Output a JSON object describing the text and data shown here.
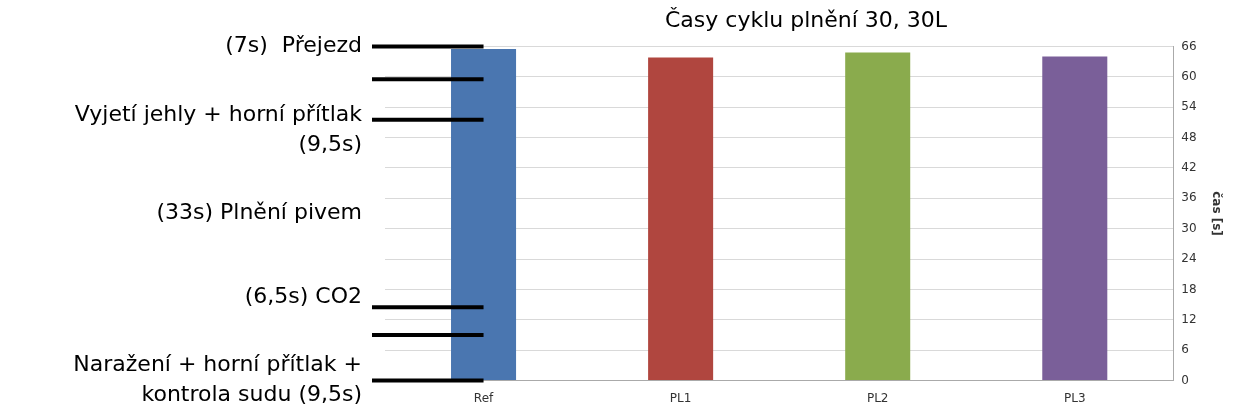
{
  "chart_data": {
    "type": "bar",
    "title": "Časy cyklu plnění 30, 30L",
    "ylabel": "čas [s]",
    "categories": [
      "Ref",
      "PL1",
      "PL2",
      "PL3"
    ],
    "values": [
      65.5,
      63.8,
      64.8,
      64
    ],
    "colors": [
      "#4a76b0",
      "#b0463f",
      "#8aab4d",
      "#7a5f99"
    ],
    "ylim": [
      0,
      66
    ],
    "yticks": [
      0,
      6,
      12,
      18,
      24,
      30,
      36,
      42,
      48,
      54,
      60,
      66
    ],
    "grid": "y",
    "ref_lines": [
      {
        "axis": "y",
        "value": 66,
        "color": "#000000"
      },
      {
        "axis": "y",
        "value": 59.5,
        "color": "#000000"
      },
      {
        "axis": "y",
        "value": 51.5,
        "color": "#000000"
      },
      {
        "axis": "y",
        "value": 14.5,
        "color": "#000000"
      },
      {
        "axis": "y",
        "value": 9,
        "color": "#000000"
      },
      {
        "axis": "y",
        "value": 0,
        "color": "#000000"
      }
    ],
    "annotations": [
      "(7s)  Přejezd",
      "Vyjetí jehly + horní přítlak (9,5s)",
      "(33s) Plnění pivem",
      "(6,5s) CO2",
      "Naražení + horní přítlak + kontrola sudu (9,5s)"
    ]
  }
}
